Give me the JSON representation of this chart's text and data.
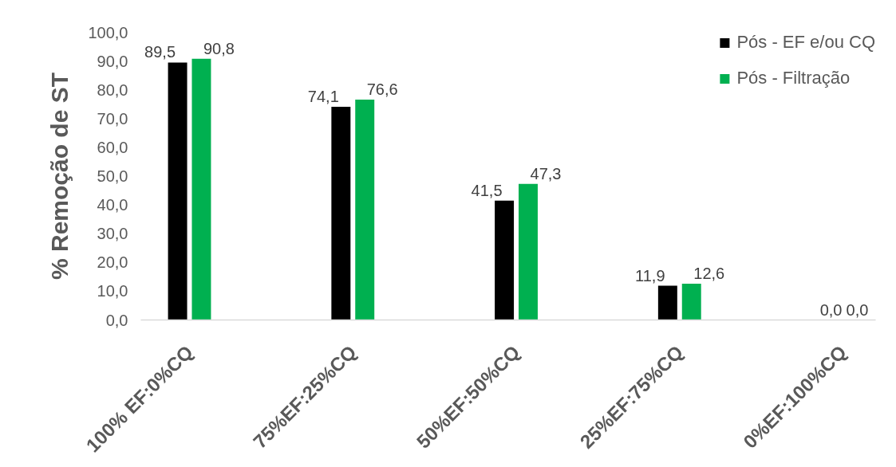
{
  "chart_data": {
    "type": "bar",
    "ylabel": "% Remoção de ST",
    "categories": [
      "100% EF:0%CQ",
      "75%EF:25%CQ",
      "50%EF:50%CQ",
      "25%EF:75%CQ",
      "0%EF:100%CQ"
    ],
    "series": [
      {
        "name": "Pós - EF e/ou CQ",
        "color": "#000000",
        "values": [
          89.5,
          74.1,
          41.5,
          11.9,
          0.0
        ],
        "value_labels": [
          "89,5",
          "74,1",
          "41,5",
          "11,9",
          "0,0"
        ]
      },
      {
        "name": "Pós - Filtração",
        "color": "#00b050",
        "values": [
          90.8,
          76.6,
          47.3,
          12.6,
          0.0
        ],
        "value_labels": [
          "90,8",
          "76,6",
          "47,3",
          "12,6",
          "0,0"
        ]
      }
    ],
    "ylim": [
      0,
      100
    ],
    "yticks": [
      {
        "value": 0,
        "label": "0,0"
      },
      {
        "value": 10,
        "label": "10,0"
      },
      {
        "value": 20,
        "label": "20,0"
      },
      {
        "value": 30,
        "label": "30,0"
      },
      {
        "value": 40,
        "label": "40,0"
      },
      {
        "value": 50,
        "label": "50,0"
      },
      {
        "value": 60,
        "label": "60,0"
      },
      {
        "value": 70,
        "label": "70,0"
      },
      {
        "value": 80,
        "label": "80,0"
      },
      {
        "value": 90,
        "label": "90,0"
      },
      {
        "value": 100,
        "label": "100,0"
      }
    ],
    "grid": false,
    "legend": "top right"
  }
}
